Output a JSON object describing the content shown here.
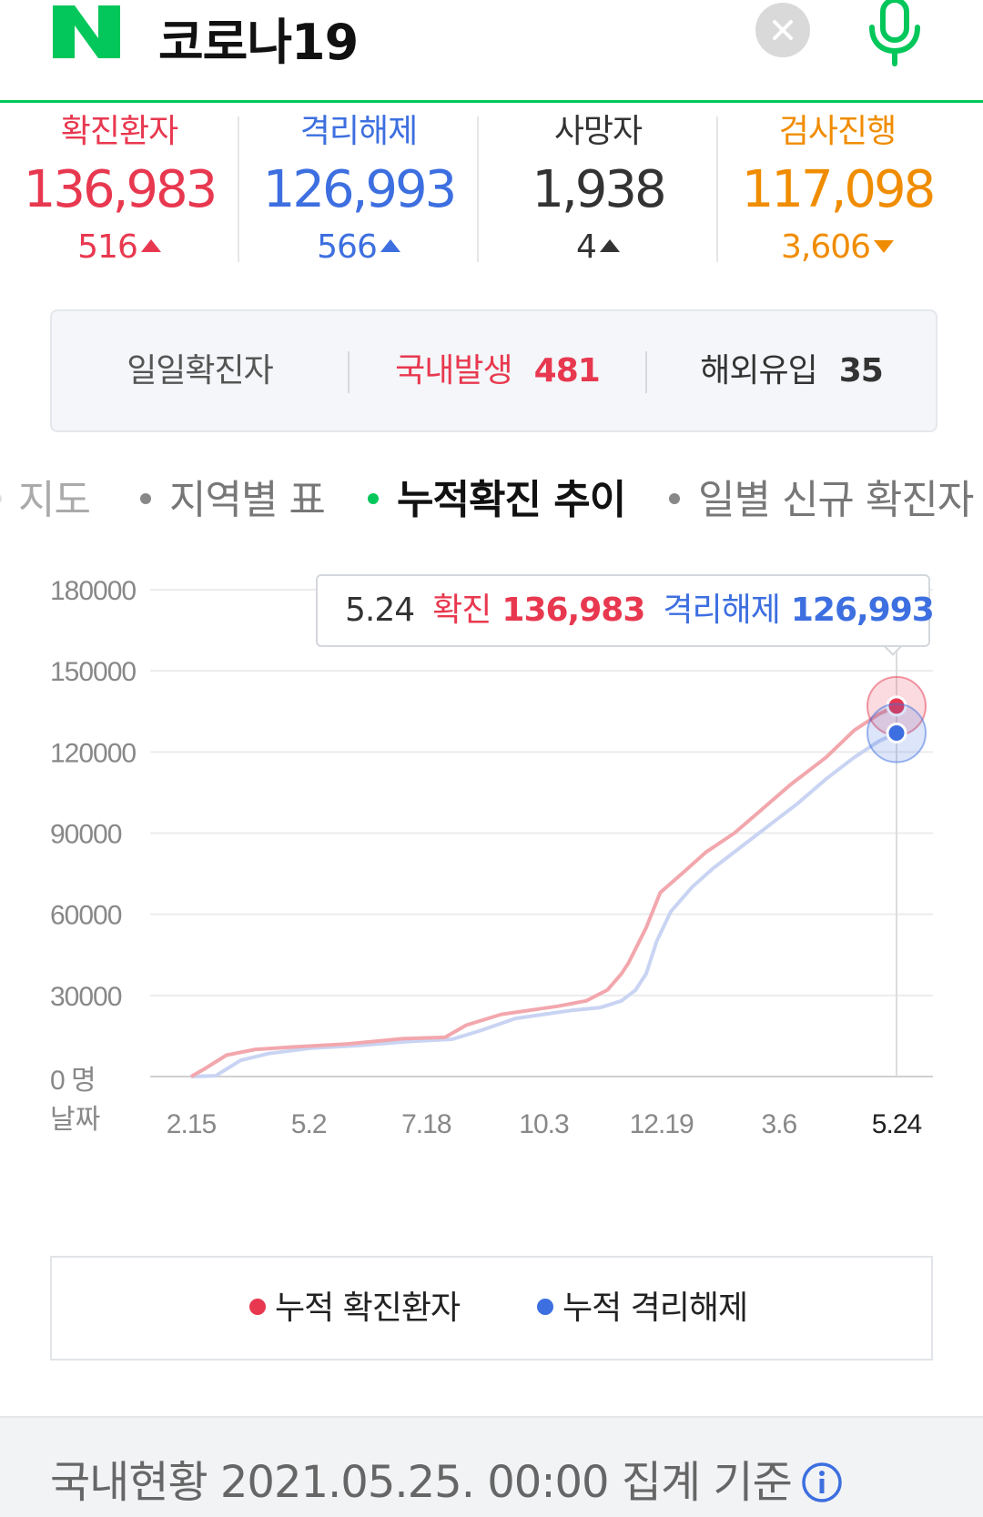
{
  "header": {
    "logo_letter": "N",
    "query": "코로나19",
    "brand_color": "#03c75a"
  },
  "stats": [
    {
      "label": "확진환자",
      "value": "136,983",
      "change": "516",
      "direction": "up",
      "color": "#e8384f"
    },
    {
      "label": "격리해제",
      "value": "126,993",
      "change": "566",
      "direction": "up",
      "color": "#3d6fe0"
    },
    {
      "label": "사망자",
      "value": "1,938",
      "change": "4",
      "direction": "up",
      "color": "#333333"
    },
    {
      "label": "검사진행",
      "value": "117,098",
      "change": "3,606",
      "direction": "down",
      "color": "#f08c00"
    }
  ],
  "daily": {
    "label": "일일확진자",
    "domestic_label": "국내발생",
    "domestic_value": "481",
    "overseas_label": "해외유입",
    "overseas_value": "35"
  },
  "tabs": [
    {
      "label": "지도",
      "active": false
    },
    {
      "label": "지역별 표",
      "active": false
    },
    {
      "label": "누적확진 추이",
      "active": true
    },
    {
      "label": "일별 신규 확진자",
      "active": false
    }
  ],
  "tooltip": {
    "date": "5.24",
    "confirmed_label": "확진",
    "confirmed_value": "136,983",
    "released_label": "격리해제",
    "released_value": "126,993"
  },
  "chart_data": {
    "type": "line",
    "title": "",
    "xlabel": "날짜",
    "ylabel": "",
    "ylim": [
      0,
      180000
    ],
    "yticks": [
      "180000",
      "150000",
      "120000",
      "90000",
      "60000",
      "30000",
      "0 명"
    ],
    "yticks_values": [
      180000,
      150000,
      120000,
      90000,
      60000,
      30000,
      0
    ],
    "xticks": [
      "2.15",
      "5.2",
      "7.18",
      "10.3",
      "12.19",
      "3.6",
      "5.24"
    ],
    "grid": true,
    "series": [
      {
        "name": "누적 확진환자",
        "color": "#e8384f",
        "line_color": "#f2a7ad",
        "x": [
          0.0,
          0.02,
          0.05,
          0.09,
          0.15,
          0.22,
          0.3,
          0.36,
          0.39,
          0.44,
          0.48,
          0.52,
          0.56,
          0.59,
          0.61,
          0.62,
          0.645,
          0.665,
          0.7,
          0.73,
          0.77,
          0.81,
          0.85,
          0.9,
          0.94,
          0.975,
          1.0
        ],
        "y": [
          0,
          3000,
          7900,
          10000,
          11000,
          12000,
          14000,
          14500,
          19000,
          23000,
          24500,
          26000,
          28000,
          32000,
          38000,
          42000,
          55000,
          68000,
          76000,
          83000,
          90000,
          99000,
          108000,
          118000,
          128000,
          134000,
          136983
        ]
      },
      {
        "name": "누적 격리해제",
        "color": "#3d6fe0",
        "line_color": "#c9d4f3",
        "x": [
          0.0,
          0.035,
          0.07,
          0.11,
          0.17,
          0.24,
          0.31,
          0.37,
          0.41,
          0.46,
          0.5,
          0.54,
          0.58,
          0.61,
          0.63,
          0.645,
          0.66,
          0.68,
          0.71,
          0.74,
          0.78,
          0.82,
          0.86,
          0.9,
          0.94,
          0.975,
          1.0
        ],
        "y": [
          0,
          300,
          6000,
          8500,
          10500,
          11500,
          13000,
          13800,
          17000,
          21500,
          23000,
          24500,
          25500,
          28000,
          32000,
          38000,
          50000,
          61000,
          70000,
          77000,
          85000,
          93000,
          101000,
          110000,
          118000,
          124000,
          126993
        ]
      }
    ]
  },
  "legend": [
    {
      "label": "누적 확진환자",
      "color": "#e8384f"
    },
    {
      "label": "누적 격리해제",
      "color": "#3d6fe0"
    }
  ],
  "footer": {
    "text": "국내현황 2021.05.25. 00:00 집계 기준"
  }
}
